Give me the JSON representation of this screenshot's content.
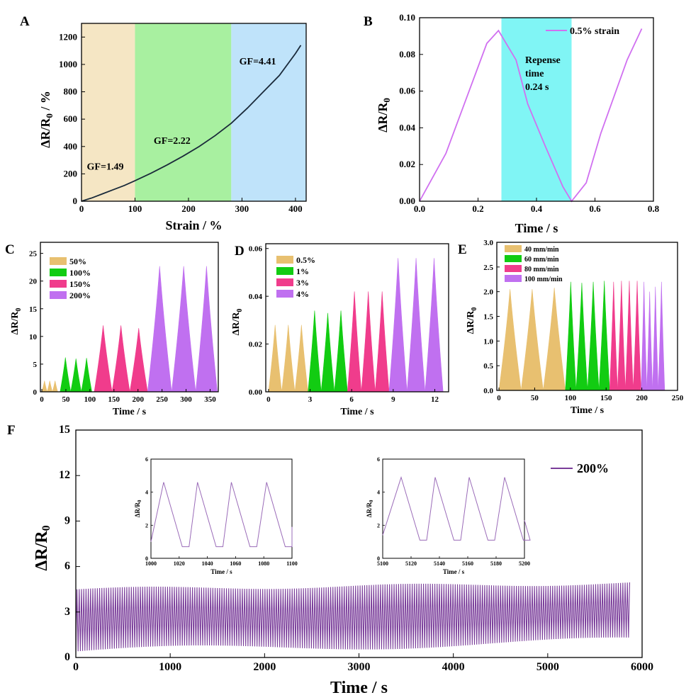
{
  "panels": {
    "A": {
      "label": "A"
    },
    "B": {
      "label": "B"
    },
    "C": {
      "label": "C"
    },
    "D": {
      "label": "D"
    },
    "E": {
      "label": "E"
    },
    "F": {
      "label": "F"
    }
  },
  "chart_data": [
    {
      "id": "A",
      "type": "line",
      "xlabel": "Strain / %",
      "ylabel_main": "ΔR/R",
      "ylabel_sub": "0",
      "ylabel_suffix": " / %",
      "xlim": [
        0,
        420
      ],
      "ylim": [
        0,
        1300
      ],
      "xticks": [
        0,
        100,
        200,
        300,
        400
      ],
      "yticks": [
        0,
        200,
        400,
        600,
        800,
        1000,
        1200
      ],
      "regions": [
        {
          "x0": 0,
          "x1": 100,
          "color": "#f5e6c4"
        },
        {
          "x0": 100,
          "x1": 280,
          "color": "#a8f0a0"
        },
        {
          "x0": 280,
          "x1": 420,
          "color": "#bfe3fa"
        }
      ],
      "annotations": [
        {
          "text": "GF=1.49",
          "x": 10,
          "y": 230
        },
        {
          "text": "GF=2.22",
          "x": 135,
          "y": 420
        },
        {
          "text": "GF=4.41",
          "x": 295,
          "y": 1000
        }
      ],
      "line_color": "#1a2a3a",
      "series": [
        {
          "x": [
            0,
            20,
            40,
            60,
            80,
            100,
            130,
            160,
            190,
            220,
            250,
            280,
            310,
            340,
            370,
            400,
            410
          ],
          "y": [
            0,
            25,
            55,
            85,
            115,
            150,
            205,
            265,
            330,
            400,
            480,
            570,
            680,
            800,
            920,
            1080,
            1140
          ]
        }
      ]
    },
    {
      "id": "B",
      "type": "line",
      "xlabel": "Time / s",
      "ylabel_main": "ΔR/R",
      "ylabel_sub": "0",
      "xlim": [
        0,
        0.8
      ],
      "ylim": [
        0,
        0.1
      ],
      "xticks": [
        0.0,
        0.2,
        0.4,
        0.6,
        0.8
      ],
      "xtick_labels": [
        "0.0",
        "0.2",
        "0.4",
        "0.6",
        "0.8"
      ],
      "yticks": [
        0.0,
        0.02,
        0.04,
        0.06,
        0.08,
        0.1
      ],
      "ytick_labels": [
        "0.00",
        "0.02",
        "0.04",
        "0.06",
        "0.08",
        "0.10"
      ],
      "region": {
        "x0": 0.28,
        "x1": 0.52,
        "color": "#80f5f5"
      },
      "annotation_lines": [
        "Repense",
        "time",
        "0.24 s"
      ],
      "line_color": "#d070f0",
      "series": [
        {
          "name": "0.5% strain",
          "x": [
            0,
            0.09,
            0.23,
            0.27,
            0.33,
            0.37,
            0.43,
            0.49,
            0.52,
            0.57,
            0.62,
            0.71,
            0.76
          ],
          "y": [
            0,
            0.026,
            0.086,
            0.093,
            0.077,
            0.053,
            0.03,
            0.008,
            0,
            0.01,
            0.037,
            0.077,
            0.094
          ]
        }
      ]
    },
    {
      "id": "C",
      "type": "area",
      "xlabel": "Time / s",
      "ylabel_main": "ΔR/R",
      "ylabel_sub": "0",
      "xlim": [
        -3,
        367
      ],
      "ylim": [
        0,
        27
      ],
      "xticks": [
        0,
        50,
        100,
        150,
        200,
        250,
        300,
        350
      ],
      "yticks": [
        0,
        5,
        10,
        15,
        20,
        25
      ],
      "groups": [
        {
          "name": "50%",
          "color": "#e8c070",
          "peaks": [
            {
              "start": 0,
              "end": 11,
              "h": 2
            },
            {
              "start": 11,
              "end": 22,
              "h": 2
            },
            {
              "start": 22,
              "end": 33,
              "h": 2
            }
          ]
        },
        {
          "name": "100%",
          "color": "#12cc12",
          "peaks": [
            {
              "start": 38,
              "end": 60,
              "h": 6.2
            },
            {
              "start": 60,
              "end": 82,
              "h": 6
            },
            {
              "start": 82,
              "end": 104,
              "h": 6.1
            }
          ]
        },
        {
          "name": "150%",
          "color": "#f03c8c",
          "peaks": [
            {
              "start": 109,
              "end": 146,
              "h": 12
            },
            {
              "start": 146,
              "end": 183,
              "h": 12
            },
            {
              "start": 183,
              "end": 220,
              "h": 11.5
            }
          ]
        },
        {
          "name": "200%",
          "color": "#c070f0",
          "peaks": [
            {
              "start": 220,
              "end": 270,
              "h": 22.7
            },
            {
              "start": 270,
              "end": 320,
              "h": 22.7
            },
            {
              "start": 320,
              "end": 365,
              "h": 22.7
            }
          ]
        }
      ]
    },
    {
      "id": "D",
      "type": "area",
      "xlabel": "Time / s",
      "ylabel_main": "ΔR/R",
      "ylabel_sub": "0",
      "xlim": [
        -0.2,
        13
      ],
      "ylim": [
        0,
        0.062
      ],
      "xticks": [
        0,
        3,
        6,
        9,
        12
      ],
      "yticks": [
        0.0,
        0.02,
        0.04,
        0.06
      ],
      "ytick_labels": [
        "0.00",
        "0.02",
        "0.04",
        "0.06"
      ],
      "groups": [
        {
          "name": "0.5%",
          "color": "#e8c070",
          "peaks": [
            {
              "start": 0,
              "end": 0.95,
              "h": 0.028
            },
            {
              "start": 0.95,
              "end": 1.9,
              "h": 0.028
            },
            {
              "start": 1.9,
              "end": 2.85,
              "h": 0.028
            }
          ]
        },
        {
          "name": "1%",
          "color": "#12cc12",
          "peaks": [
            {
              "start": 2.85,
              "end": 3.8,
              "h": 0.034
            },
            {
              "start": 3.8,
              "end": 4.75,
              "h": 0.033
            },
            {
              "start": 4.75,
              "end": 5.7,
              "h": 0.034
            }
          ]
        },
        {
          "name": "3%",
          "color": "#f03c8c",
          "peaks": [
            {
              "start": 5.7,
              "end": 6.7,
              "h": 0.042
            },
            {
              "start": 6.7,
              "end": 7.7,
              "h": 0.042
            },
            {
              "start": 7.7,
              "end": 8.7,
              "h": 0.042
            }
          ]
        },
        {
          "name": "4%",
          "color": "#c070f0",
          "peaks": [
            {
              "start": 8.7,
              "end": 10.0,
              "h": 0.056
            },
            {
              "start": 10.0,
              "end": 11.3,
              "h": 0.056
            },
            {
              "start": 11.3,
              "end": 12.6,
              "h": 0.056
            }
          ]
        }
      ]
    },
    {
      "id": "E",
      "type": "area",
      "xlabel": "Time / s",
      "ylabel_main": "ΔR/R",
      "ylabel_sub": "0",
      "xlim": [
        -3,
        250
      ],
      "ylim": [
        0,
        3.0
      ],
      "xticks": [
        0,
        50,
        100,
        150,
        200,
        250
      ],
      "yticks": [
        0.0,
        0.5,
        1.0,
        1.5,
        2.0,
        2.5,
        3.0
      ],
      "ytick_labels": [
        "0.0",
        "0.5",
        "1.0",
        "1.5",
        "2.0",
        "2.5",
        "3.0"
      ],
      "groups": [
        {
          "name": "40 mm/min",
          "color": "#e8c070",
          "peaks": [
            {
              "start": 0,
              "end": 31,
              "h": 2.05
            },
            {
              "start": 31,
              "end": 62,
              "h": 2.05
            },
            {
              "start": 62,
              "end": 93,
              "h": 2.08
            }
          ]
        },
        {
          "name": "60 mm/min",
          "color": "#12cc12",
          "peaks": [
            {
              "start": 93,
              "end": 108,
              "h": 2.2
            },
            {
              "start": 108,
              "end": 124,
              "h": 2.18
            },
            {
              "start": 124,
              "end": 140,
              "h": 2.2
            },
            {
              "start": 140,
              "end": 155,
              "h": 2.22
            }
          ]
        },
        {
          "name": "80 mm/min",
          "color": "#f03c8c",
          "peaks": [
            {
              "start": 155,
              "end": 166,
              "h": 2.2
            },
            {
              "start": 166,
              "end": 177,
              "h": 2.22
            },
            {
              "start": 177,
              "end": 188,
              "h": 2.22
            },
            {
              "start": 188,
              "end": 199,
              "h": 2.22
            }
          ]
        },
        {
          "name": "100 mm/min",
          "color": "#c070f0",
          "peaks": [
            {
              "start": 199,
              "end": 207,
              "h": 2.2
            },
            {
              "start": 207,
              "end": 215,
              "h": 2.0
            },
            {
              "start": 215,
              "end": 223,
              "h": 2.1
            },
            {
              "start": 223,
              "end": 232,
              "h": 2.2
            }
          ]
        }
      ]
    },
    {
      "id": "F",
      "type": "line",
      "xlabel": "Time / s",
      "ylabel_main": "ΔR/R",
      "ylabel_sub": "0",
      "xlim": [
        0,
        6000
      ],
      "ylim": [
        0,
        15
      ],
      "xticks": [
        0,
        1000,
        2000,
        3000,
        4000,
        5000,
        6000
      ],
      "yticks": [
        0,
        3,
        6,
        9,
        12,
        15
      ],
      "line_color": "#7a3d9a",
      "series": [
        {
          "name": "200%",
          "period_s": 24,
          "t_end": 5870,
          "min_start": 0.4,
          "min_end": 1.1,
          "max_start": 4.5,
          "max_end": 4.9
        }
      ],
      "insets": [
        {
          "xlabel": "Time / s",
          "ylabel_main": "ΔR/R",
          "ylabel_sub": "0",
          "xlim": [
            1000,
            1100
          ],
          "ylim": [
            0,
            6
          ],
          "xticks": [
            1000,
            1020,
            1040,
            1060,
            1080,
            1100
          ],
          "yticks": [
            0,
            2,
            4,
            6
          ],
          "peak_times": [
            1009,
            1033,
            1057,
            1082
          ],
          "peak_value": 4.6,
          "min_value": 0.7
        },
        {
          "xlabel": "Time / s",
          "ylabel_main": "ΔR/R",
          "ylabel_sub": "0",
          "xlim": [
            5100,
            5200
          ],
          "ylim": [
            0,
            6
          ],
          "xticks": [
            5100,
            5120,
            5140,
            5160,
            5180,
            5200
          ],
          "yticks": [
            0,
            2,
            4,
            6
          ],
          "peak_times": [
            5113,
            5137,
            5161,
            5186
          ],
          "peak_value": 4.9,
          "min_value": 1.1
        }
      ]
    }
  ]
}
